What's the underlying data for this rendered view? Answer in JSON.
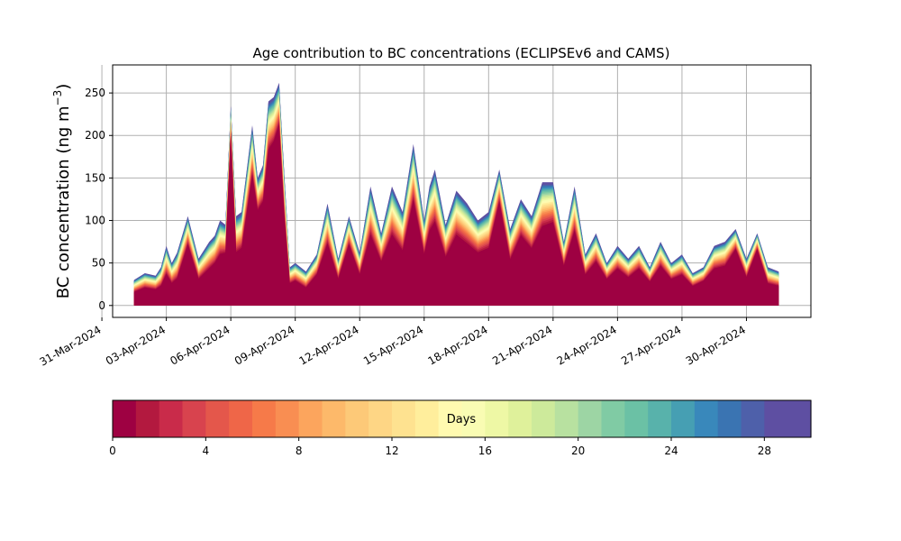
{
  "chart_data": [
    {
      "type": "area",
      "stacked": true,
      "title": "Age contribution to BC concentrations (ECLIPSEv6 and CAMS)",
      "ylabel": "BC concentration (ng m",
      "ylabel_superscript": "−3",
      "ylabel_close": ")",
      "xlabel": "",
      "ylim": [
        -14,
        283
      ],
      "xlim": [
        "2024-03-31T12:00",
        "2024-05-03T00:00"
      ],
      "grid": true,
      "x_tick_labels": [
        "31-Mar-2024",
        "03-Apr-2024",
        "06-Apr-2024",
        "09-Apr-2024",
        "12-Apr-2024",
        "15-Apr-2024",
        "18-Apr-2024",
        "21-Apr-2024",
        "24-Apr-2024",
        "27-Apr-2024",
        "30-Apr-2024"
      ],
      "x_tick_dates": [
        "2024-03-31",
        "2024-04-03",
        "2024-04-06",
        "2024-04-09",
        "2024-04-12",
        "2024-04-15",
        "2024-04-18",
        "2024-04-21",
        "2024-04-24",
        "2024-04-27",
        "2024-04-30"
      ],
      "y_ticks": [
        0,
        50,
        100,
        150,
        200,
        250
      ],
      "series_description": "stacked contributions by age class (0–30 days)",
      "x": [
        "2024-04-01T12:00",
        "2024-04-02T00:00",
        "2024-04-02T12:00",
        "2024-04-02T18:00",
        "2024-04-03T00:00",
        "2024-04-03T06:00",
        "2024-04-03T12:00",
        "2024-04-04T00:00",
        "2024-04-04T12:00",
        "2024-04-05T00:00",
        "2024-04-05T06:00",
        "2024-04-05T12:00",
        "2024-04-05T18:00",
        "2024-04-06T00:00",
        "2024-04-06T06:00",
        "2024-04-06T12:00",
        "2024-04-07T00:00",
        "2024-04-07T06:00",
        "2024-04-07T12:00",
        "2024-04-07T18:00",
        "2024-04-08T00:00",
        "2024-04-08T06:00",
        "2024-04-08T12:00",
        "2024-04-08T18:00",
        "2024-04-09T00:00",
        "2024-04-09T12:00",
        "2024-04-10T00:00",
        "2024-04-10T12:00",
        "2024-04-11T00:00",
        "2024-04-11T12:00",
        "2024-04-12T00:00",
        "2024-04-12T12:00",
        "2024-04-13T00:00",
        "2024-04-13T12:00",
        "2024-04-14T00:00",
        "2024-04-14T12:00",
        "2024-04-15T00:00",
        "2024-04-15T06:00",
        "2024-04-15T12:00",
        "2024-04-16T00:00",
        "2024-04-16T12:00",
        "2024-04-17T00:00",
        "2024-04-17T12:00",
        "2024-04-18T00:00",
        "2024-04-18T12:00",
        "2024-04-19T00:00",
        "2024-04-19T12:00",
        "2024-04-20T00:00",
        "2024-04-20T12:00",
        "2024-04-21T00:00",
        "2024-04-21T12:00",
        "2024-04-22T00:00",
        "2024-04-22T12:00",
        "2024-04-23T00:00",
        "2024-04-23T12:00",
        "2024-04-24T00:00",
        "2024-04-24T12:00",
        "2024-04-25T00:00",
        "2024-04-25T12:00",
        "2024-04-26T00:00",
        "2024-04-26T12:00",
        "2024-04-27T00:00",
        "2024-04-27T12:00",
        "2024-04-28T00:00",
        "2024-04-28T12:00",
        "2024-04-29T00:00",
        "2024-04-29T12:00",
        "2024-04-30T00:00",
        "2024-04-30T12:00",
        "2024-05-01T00:00",
        "2024-05-01T12:00"
      ],
      "total": [
        30,
        38,
        35,
        45,
        70,
        50,
        62,
        105,
        55,
        75,
        82,
        100,
        95,
        235,
        105,
        110,
        212,
        150,
        165,
        240,
        245,
        262,
        150,
        45,
        50,
        40,
        60,
        120,
        55,
        105,
        62,
        140,
        85,
        140,
        110,
        190,
        100,
        140,
        160,
        95,
        135,
        120,
        100,
        110,
        160,
        90,
        125,
        105,
        145,
        145,
        75,
        140,
        60,
        85,
        50,
        70,
        55,
        70,
        45,
        75,
        50,
        60,
        38,
        45,
        70,
        75,
        90,
        55,
        85,
        45,
        40
      ],
      "fresh": [
        15,
        20,
        18,
        22,
        35,
        25,
        30,
        70,
        30,
        42,
        48,
        58,
        60,
        200,
        60,
        65,
        150,
        110,
        120,
        180,
        190,
        210,
        100,
        25,
        28,
        20,
        35,
        70,
        30,
        70,
        35,
        80,
        50,
        80,
        62,
        120,
        58,
        85,
        95,
        55,
        80,
        70,
        60,
        65,
        120,
        52,
        80,
        65,
        90,
        95,
        45,
        85,
        35,
        50,
        30,
        42,
        32,
        42,
        27,
        45,
        30,
        35,
        22,
        28,
        42,
        45,
        65,
        32,
        65,
        25,
        22
      ],
      "colorbar": {
        "label": "Days",
        "ticks": [
          0,
          4,
          8,
          12,
          16,
          20,
          24,
          28
        ],
        "range": [
          0,
          30
        ],
        "colors": [
          "#9e0142",
          "#b3193f",
          "#c92b4a",
          "#d8434e",
          "#e4574b",
          "#ef6648",
          "#f67a49",
          "#f98e52",
          "#fca55d",
          "#fdb96a",
          "#fdc978",
          "#fed685",
          "#fee290",
          "#ffee9c",
          "#fffab0",
          "#f9fcb3",
          "#eef8a5",
          "#dff19b",
          "#cdea9b",
          "#b8e1a0",
          "#9dd5a4",
          "#80cba4",
          "#6bc1a5",
          "#58b2ab",
          "#469fb3",
          "#3988bb",
          "#3a74b2",
          "#4e60aa",
          "#5e4fa2",
          "#5e4fa2"
        ]
      }
    }
  ]
}
